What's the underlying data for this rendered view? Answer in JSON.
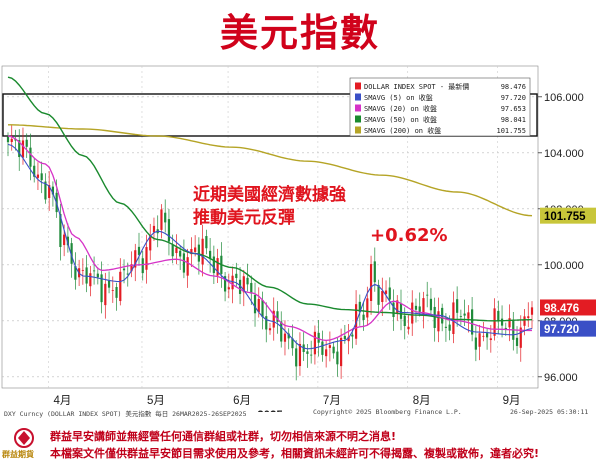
{
  "title": "美元指數",
  "chart_data": {
    "type": "candlestick",
    "y_ticks": [
      "106.000",
      "104.000",
      "102.000",
      "100.000",
      "98.000",
      "96.000"
    ],
    "y_tick_values": [
      106,
      104,
      102,
      100,
      98,
      96
    ],
    "ylim": [
      95.6,
      107.1
    ],
    "x_ticks": [
      "4月",
      "5月",
      "6月",
      "7月",
      "8月",
      "9月"
    ],
    "x_tick_positions": [
      14,
      39,
      62,
      86,
      110,
      134
    ],
    "xlabel": "2025",
    "n_bars": 141,
    "sample_close": [
      [
        0,
        104.2
      ],
      [
        5,
        104.0
      ],
      [
        10,
        102.8
      ],
      [
        15,
        100.8
      ],
      [
        20,
        99.6
      ],
      [
        25,
        99.2
      ],
      [
        30,
        99.4
      ],
      [
        35,
        100.2
      ],
      [
        40,
        101.6
      ],
      [
        45,
        100.3
      ],
      [
        50,
        100.5
      ],
      [
        55,
        100.1
      ],
      [
        60,
        99.3
      ],
      [
        65,
        99.0
      ],
      [
        70,
        97.9
      ],
      [
        75,
        97.2
      ],
      [
        80,
        96.9
      ],
      [
        85,
        97.0
      ],
      [
        90,
        97.2
      ],
      [
        95,
        98.3
      ],
      [
        97,
        99.9
      ],
      [
        100,
        98.8
      ],
      [
        105,
        98.1
      ],
      [
        110,
        98.6
      ],
      [
        115,
        98.0
      ],
      [
        120,
        98.3
      ],
      [
        125,
        97.4
      ],
      [
        130,
        97.9
      ],
      [
        135,
        97.5
      ],
      [
        140,
        98.48
      ]
    ],
    "ma5_anchor": [
      [
        0,
        104.3
      ],
      [
        10,
        102.9
      ],
      [
        20,
        99.6
      ],
      [
        30,
        99.4
      ],
      [
        40,
        101.2
      ],
      [
        50,
        100.4
      ],
      [
        60,
        99.4
      ],
      [
        70,
        98.0
      ],
      [
        80,
        97.0
      ],
      [
        90,
        97.3
      ],
      [
        98,
        99.3
      ],
      [
        105,
        98.3
      ],
      [
        115,
        98.2
      ],
      [
        125,
        97.6
      ],
      [
        135,
        97.5
      ],
      [
        140,
        97.72
      ]
    ],
    "ma20_anchor": [
      [
        0,
        104.6
      ],
      [
        10,
        103.6
      ],
      [
        18,
        101.0
      ],
      [
        25,
        99.8
      ],
      [
        35,
        100.0
      ],
      [
        45,
        100.2
      ],
      [
        55,
        99.6
      ],
      [
        65,
        99.0
      ],
      [
        75,
        97.8
      ],
      [
        85,
        97.3
      ],
      [
        95,
        97.8
      ],
      [
        103,
        98.7
      ],
      [
        110,
        98.3
      ],
      [
        120,
        98.0
      ],
      [
        130,
        97.7
      ],
      [
        140,
        97.653
      ]
    ],
    "ma50_anchor": [
      [
        0,
        106.7
      ],
      [
        10,
        105.4
      ],
      [
        20,
        103.9
      ],
      [
        30,
        102.2
      ],
      [
        40,
        100.9
      ],
      [
        50,
        100.4
      ],
      [
        60,
        99.9
      ],
      [
        70,
        99.2
      ],
      [
        80,
        98.6
      ],
      [
        90,
        98.4
      ],
      [
        100,
        98.3
      ],
      [
        110,
        98.2
      ],
      [
        120,
        98.05
      ],
      [
        130,
        98.0
      ],
      [
        140,
        98.041
      ]
    ],
    "ma200_anchor": [
      [
        0,
        105.0
      ],
      [
        20,
        104.85
      ],
      [
        40,
        104.6
      ],
      [
        60,
        104.2
      ],
      [
        80,
        103.7
      ],
      [
        100,
        103.2
      ],
      [
        120,
        102.6
      ],
      [
        140,
        101.755
      ]
    ],
    "series": [
      {
        "name": "DOLLAR INDEX SPOT - 最新價",
        "value": "98.476",
        "color": "#e31c23"
      },
      {
        "name": "SMAVG (5)  on 收盤",
        "value": "97.720",
        "color": "#3a4fc6"
      },
      {
        "name": "SMAVG (20)  on 收盤",
        "value": "97.653",
        "color": "#d633c7"
      },
      {
        "name": "SMAVG (50)  on 收盤",
        "value": "98.041",
        "color": "#1a8a2e"
      },
      {
        "name": "SMAVG (200)  on 收盤",
        "value": "101.755",
        "color": "#b5a426"
      }
    ],
    "value_tags": [
      {
        "text": "101.755",
        "bg": "#c8c63a",
        "fg": "#000000",
        "y": 101.755
      },
      {
        "text": "98.476",
        "bg": "#e31c23",
        "fg": "#ffffff",
        "y": 98.476
      },
      {
        "text": "97.720",
        "bg": "#3a4fc6",
        "fg": "#ffffff",
        "y": 97.72
      }
    ],
    "annotations": {
      "text1": "近期美國經濟數據強",
      "text2": "推動美元反彈",
      "pct": "+0.62%"
    },
    "highlight_band": [
      104.6,
      106.1
    ],
    "colors": {
      "up": "#e31c23",
      "down": "#1f8a3a"
    }
  },
  "meta_left": "DXY Curncy (DOLLAR INDEX SPOT) 美元指數  每日 26MAR2025-26SEP2025",
  "meta_mid": "Copyright© 2025 Bloomberg Finance L.P.",
  "meta_right": "26-Sep-2025 05:30:11",
  "footer_line1": "群益早安講師並無經營任何通信群組或社群，切勿相信來源不明之消息!",
  "footer_line2": "本檔案文件僅供群益早安節目需求使用及參考，相關資訊未經許可不得揭露、複製或散佈，違者必究!",
  "logo_text": "群益期貨"
}
